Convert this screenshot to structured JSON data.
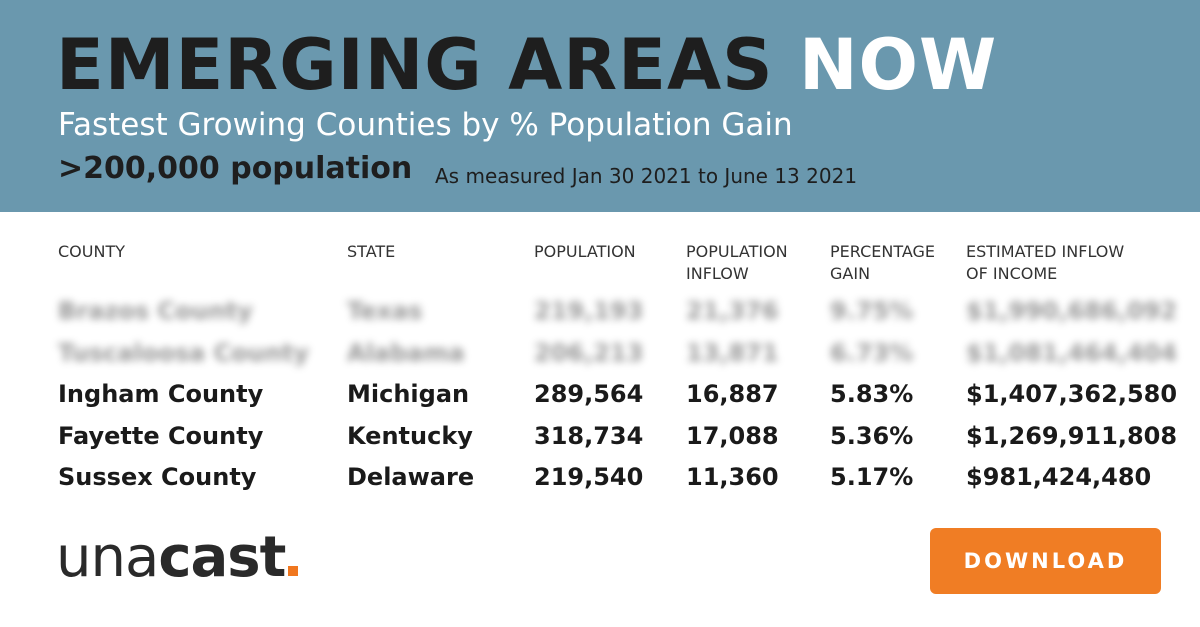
{
  "hero": {
    "title_main": "EMERGING AREAS",
    "title_highlight": "NOW",
    "subtitle": "Fastest Growing Counties by % Population Gain",
    "threshold": ">200,000 population",
    "period": "As measured Jan 30 2021 to June 13 2021"
  },
  "table": {
    "headers": [
      "COUNTY",
      "STATE",
      "POPULATION",
      "POPULATION\nINFLOW",
      "PERCENTAGE\nGAIN",
      "ESTIMATED INFLOW\nOF INCOME"
    ],
    "blurred_rows": [
      [
        "Brazos County",
        "Texas",
        "219,193",
        "21,376",
        "9.75%",
        "$1,990,686,092"
      ],
      [
        "Tuscaloosa County",
        "Alabama",
        "206,213",
        "13,871",
        "6.73%",
        "$1,081,464,404"
      ]
    ],
    "rows": [
      [
        "Ingham County",
        "Michigan",
        "289,564",
        "16,887",
        "5.83%",
        "$1,407,362,580"
      ],
      [
        "Fayette County",
        "Kentucky",
        "318,734",
        "17,088",
        "5.36%",
        "$1,269,911,808"
      ],
      [
        "Sussex County",
        "Delaware",
        "219,540",
        "11,360",
        "5.17%",
        "$981,424,480"
      ]
    ]
  },
  "logo": {
    "light": "una",
    "bold": "cast",
    "accent_color": "#f0771f"
  },
  "cta": {
    "label": "DOWNLOAD",
    "color": "#f07d24"
  },
  "colors": {
    "hero_background": "#6a98ae"
  }
}
